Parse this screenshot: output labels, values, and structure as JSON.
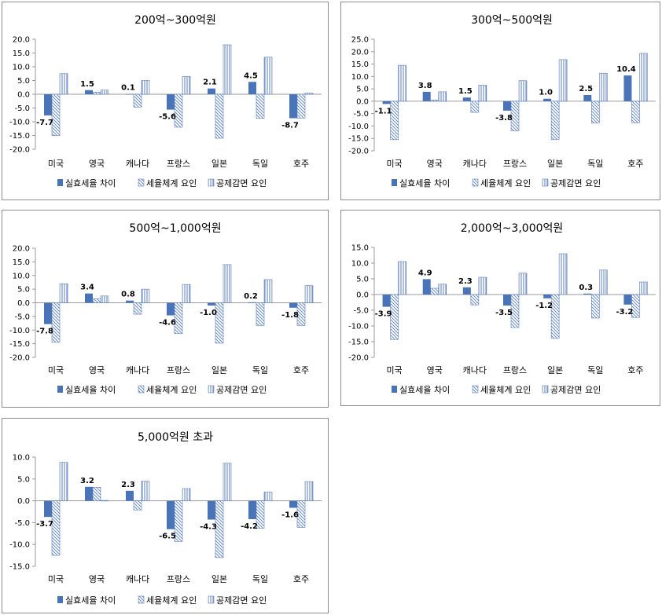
{
  "legend_labels": [
    "실효세율 차이",
    "세율체계 요인",
    "공제감면 요인"
  ],
  "colors": {
    "effective": "#4a74b8",
    "hatch": "#5a7fc0",
    "frame": "#8c8c8c",
    "axis": "#9a9a9a"
  },
  "chart_data": [
    {
      "type": "bar",
      "title": "200억~300억원",
      "categories": [
        "미국",
        "영국",
        "캐나다",
        "프랑스",
        "일본",
        "독일",
        "호주"
      ],
      "ylim": [
        -20,
        20
      ],
      "yticks": [
        "20.0",
        "15.0",
        "10.0",
        "5.0",
        "0.0",
        "-5.0",
        "-10.0",
        "-15.0",
        "-20.0"
      ],
      "series": [
        {
          "name": "실효세율 차이",
          "values": [
            -7.7,
            1.5,
            0.1,
            -5.6,
            2.1,
            4.5,
            -8.7
          ],
          "labels": [
            "-7.7",
            "1.5",
            "0.1",
            "-5.6",
            "2.1",
            "4.5",
            "-8.7"
          ]
        },
        {
          "name": "세율체계 요인",
          "values": [
            -15,
            0.8,
            -4.7,
            -12,
            -16,
            -8.8,
            -8.7
          ]
        },
        {
          "name": "공제감면 요인",
          "values": [
            7.5,
            1.5,
            5,
            6.5,
            18,
            13.5,
            0.4
          ]
        }
      ],
      "legend": "bottom"
    },
    {
      "type": "bar",
      "title": "300억~500억원",
      "categories": [
        "미국",
        "영국",
        "캐나다",
        "프랑스",
        "일본",
        "독일",
        "호주"
      ],
      "ylim": [
        -20,
        25
      ],
      "yticks": [
        "25.0",
        "20.0",
        "15.0",
        "10.0",
        "5.0",
        "0.0",
        "-5.0",
        "-10.0",
        "-15.0",
        "-20.0"
      ],
      "series": [
        {
          "name": "실효세율 차이",
          "values": [
            -1.1,
            3.8,
            1.5,
            -3.8,
            1.0,
            2.5,
            10.4
          ],
          "labels": [
            "-1.1",
            "3.8",
            "1.5",
            "-3.8",
            "1.0",
            "2.5",
            "10.4"
          ]
        },
        {
          "name": "세율체계 요인",
          "values": [
            -15.5,
            0.5,
            -4.5,
            -12,
            -15.5,
            -8.8,
            -8.7
          ]
        },
        {
          "name": "공제감면 요인",
          "values": [
            14.5,
            3.8,
            6.5,
            8.3,
            16.8,
            11.3,
            19.3
          ]
        }
      ],
      "legend": "bottom"
    },
    {
      "type": "bar",
      "title": "500억~1,000억원",
      "categories": [
        "미국",
        "영국",
        "캐나다",
        "프랑스",
        "일본",
        "독일",
        "호주"
      ],
      "ylim": [
        -20,
        20
      ],
      "yticks": [
        "20.0",
        "15.0",
        "10.0",
        "5.0",
        "0.0",
        "-5.0",
        "-10.0",
        "-15.0",
        "-20.0"
      ],
      "series": [
        {
          "name": "실효세율 차이",
          "values": [
            -7.8,
            3.4,
            0.8,
            -4.6,
            -1.0,
            0.2,
            -1.8
          ],
          "labels": [
            "-7.8",
            "3.4",
            "0.8",
            "-4.6",
            "-1.0",
            "0.2",
            "-1.8"
          ]
        },
        {
          "name": "세율체계 요인",
          "values": [
            -14.5,
            1.5,
            -4.2,
            -11.3,
            -14.8,
            -8.3,
            -8.3
          ]
        },
        {
          "name": "공제감면 요인",
          "values": [
            7,
            2.5,
            5,
            6.7,
            14,
            8.5,
            6.3
          ]
        }
      ],
      "legend": "bottom"
    },
    {
      "type": "bar",
      "title": "2,000억~3,000억원",
      "categories": [
        "미국",
        "영국",
        "캐나다",
        "프랑스",
        "일본",
        "독일",
        "호주"
      ],
      "ylim": [
        -20,
        15
      ],
      "yticks": [
        "15.0",
        "10.0",
        "5.0",
        "0.0",
        "-5.0",
        "-10.0",
        "-15.0",
        "-20.0"
      ],
      "series": [
        {
          "name": "실효세율 차이",
          "values": [
            -3.9,
            4.9,
            2.3,
            -3.5,
            -1.2,
            0.3,
            -3.2
          ],
          "labels": [
            "-3.9",
            "4.9",
            "2.3",
            "-3.5",
            "-1.2",
            "0.3",
            "-3.2"
          ]
        },
        {
          "name": "세율체계 요인",
          "values": [
            -14.3,
            2,
            -3.3,
            -10.5,
            -14,
            -7.5,
            -7.3
          ]
        },
        {
          "name": "공제감면 요인",
          "values": [
            10.5,
            3.3,
            5.5,
            6.8,
            13,
            7.8,
            4
          ]
        }
      ],
      "legend": "bottom"
    },
    {
      "type": "bar",
      "title": "5,000억원 초과",
      "categories": [
        "미국",
        "영국",
        "캐나다",
        "프랑스",
        "일본",
        "독일",
        "호주"
      ],
      "ylim": [
        -15,
        10
      ],
      "yticks": [
        "10.0",
        "5.0",
        "0.0",
        "-5.0",
        "-10.0",
        "-15.0"
      ],
      "series": [
        {
          "name": "실효세율 차이",
          "values": [
            -3.7,
            3.2,
            2.3,
            -6.5,
            -4.3,
            -4.2,
            -1.6
          ],
          "labels": [
            "-3.7",
            "3.2",
            "2.3",
            "-6.5",
            "-4.3",
            "-4.2",
            "-1.6"
          ]
        },
        {
          "name": "세율체계 요인",
          "values": [
            -12.5,
            3.1,
            -2.1,
            -9.3,
            -13,
            -6.3,
            -6.1
          ]
        },
        {
          "name": "공제감면 요인",
          "values": [
            8.8,
            0.1,
            4.5,
            2.8,
            8.6,
            2,
            4.4
          ]
        }
      ],
      "legend": "bottom"
    }
  ]
}
